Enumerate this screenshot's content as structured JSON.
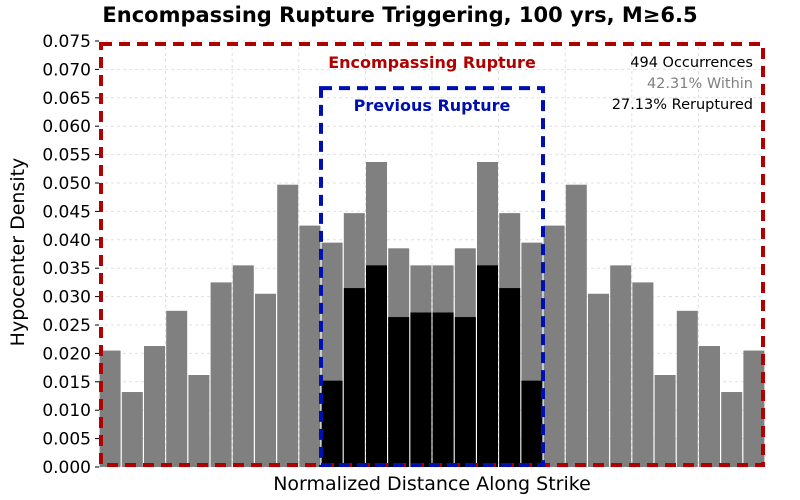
{
  "chart_data": {
    "type": "bar",
    "title": "Encompassing Rupture Triggering, 100 yrs, M≥6.5",
    "xlabel": "Normalized Distance Along Strike",
    "ylabel": "Hypocenter Density",
    "ylim": [
      0,
      0.075
    ],
    "yticks": [
      "0.000",
      "0.005",
      "0.010",
      "0.015",
      "0.020",
      "0.025",
      "0.030",
      "0.035",
      "0.040",
      "0.045",
      "0.050",
      "0.055",
      "0.060",
      "0.065",
      "0.070",
      "0.075"
    ],
    "grid": true,
    "bins": 30,
    "series": [
      {
        "color": "#808080",
        "values": [
          0.0205,
          0.0132,
          0.0213,
          0.0275,
          0.0162,
          0.0325,
          0.0355,
          0.0305,
          0.0497,
          0.0425,
          0.0395,
          0.0447,
          0.0537,
          0.0385,
          0.0355,
          0.0355,
          0.0385,
          0.0537,
          0.0447,
          0.0395,
          0.0425,
          0.0497,
          0.0305,
          0.0355,
          0.0325,
          0.0162,
          0.0275,
          0.0213,
          0.0132,
          0.0205
        ]
      },
      {
        "color": "#000000",
        "values": [
          0,
          0,
          0,
          0,
          0,
          0,
          0,
          0,
          0,
          0,
          0.0152,
          0.0315,
          0.0355,
          0.0264,
          0.0272,
          0.0272,
          0.0264,
          0.0355,
          0.0315,
          0.0152,
          0,
          0,
          0,
          0,
          0,
          0,
          0,
          0,
          0,
          0
        ]
      }
    ],
    "annotations": {
      "encompassing_label": "Encompassing Rupture",
      "encompassing_color": "#b00000",
      "previous_label": "Previous Rupture",
      "previous_color": "#0010b0",
      "previous_bins": [
        10,
        19
      ],
      "previous_top": 0.0667,
      "stats": [
        {
          "text": "494 Occurrences",
          "color": "#000000"
        },
        {
          "text": "42.31% Within",
          "color": "#808080"
        },
        {
          "text": "27.13% Reruptured",
          "color": "#000000"
        }
      ]
    }
  }
}
